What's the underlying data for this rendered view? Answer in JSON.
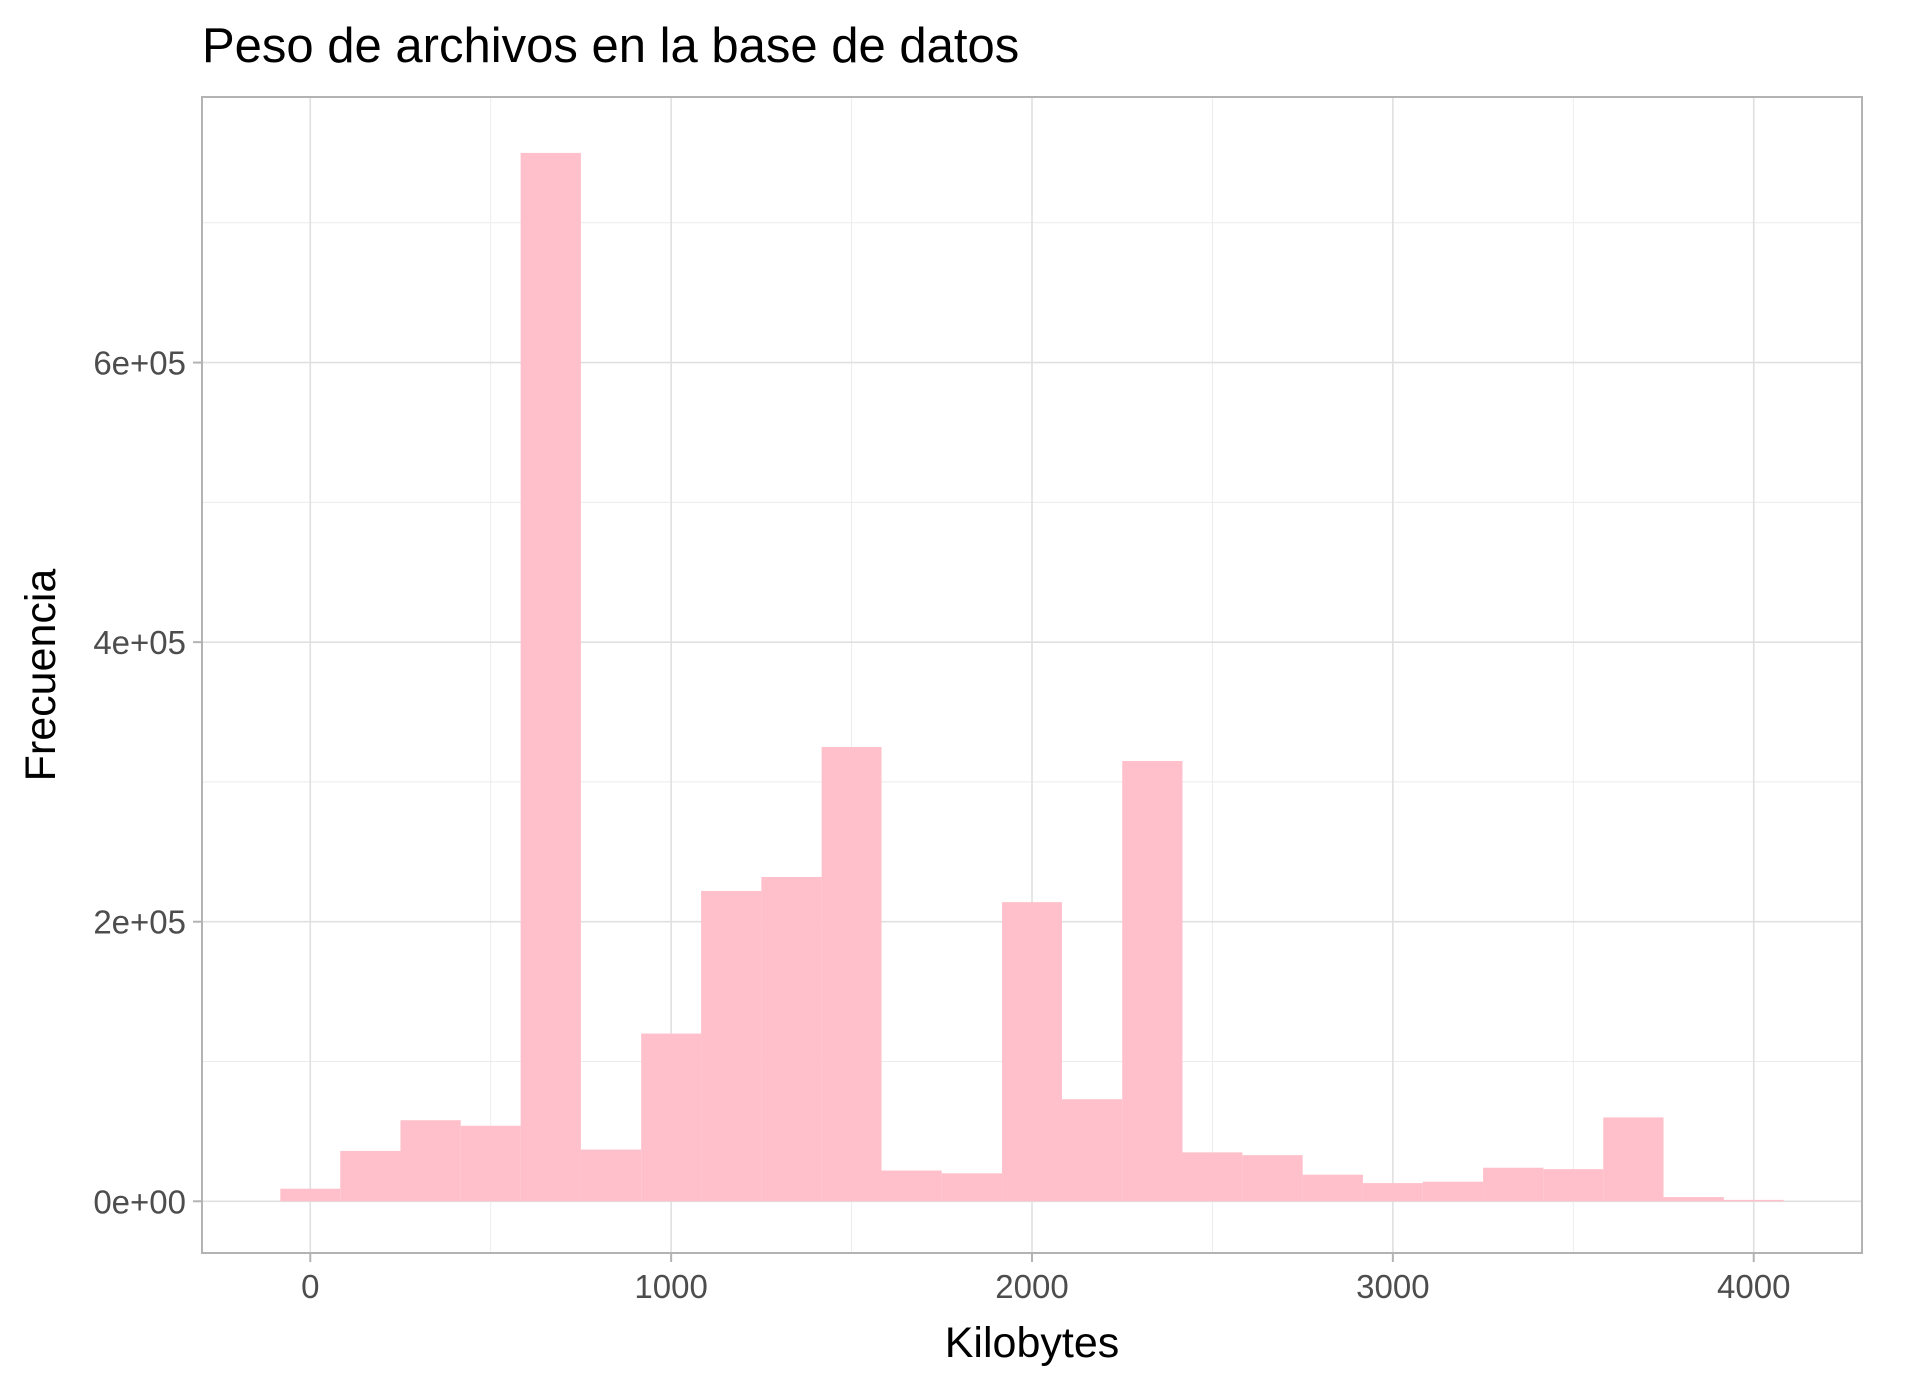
{
  "chart_data": {
    "type": "bar",
    "title": "Peso de archivos en la base de datos",
    "xlabel": "Kilobytes",
    "ylabel": "Frecuencia",
    "xlim": [
      -300,
      4300
    ],
    "ylim": [
      -37000,
      790000
    ],
    "x_ticks": [
      0,
      1000,
      2000,
      3000,
      4000
    ],
    "x_tick_labels": [
      "0",
      "1000",
      "2000",
      "3000",
      "4000"
    ],
    "y_ticks": [
      0,
      200000,
      400000,
      600000
    ],
    "y_tick_labels": [
      "0e+00",
      "2e+05",
      "4e+05",
      "6e+05"
    ],
    "bar_color": "#ffc0cb",
    "grid": true,
    "bins": [
      {
        "x0": -83,
        "x1": 83,
        "count": 9000
      },
      {
        "x0": 83,
        "x1": 250,
        "count": 36000
      },
      {
        "x0": 250,
        "x1": 417,
        "count": 58000
      },
      {
        "x0": 417,
        "x1": 583,
        "count": 54000
      },
      {
        "x0": 583,
        "x1": 750,
        "count": 750000
      },
      {
        "x0": 750,
        "x1": 917,
        "count": 37000
      },
      {
        "x0": 917,
        "x1": 1083,
        "count": 120000
      },
      {
        "x0": 1083,
        "x1": 1250,
        "count": 222000
      },
      {
        "x0": 1250,
        "x1": 1417,
        "count": 232000
      },
      {
        "x0": 1417,
        "x1": 1583,
        "count": 325000
      },
      {
        "x0": 1583,
        "x1": 1750,
        "count": 22000
      },
      {
        "x0": 1750,
        "x1": 1917,
        "count": 20000
      },
      {
        "x0": 1917,
        "x1": 2083,
        "count": 214000
      },
      {
        "x0": 2083,
        "x1": 2250,
        "count": 73000
      },
      {
        "x0": 2250,
        "x1": 2417,
        "count": 315000
      },
      {
        "x0": 2417,
        "x1": 2583,
        "count": 35000
      },
      {
        "x0": 2583,
        "x1": 2750,
        "count": 33000
      },
      {
        "x0": 2750,
        "x1": 2917,
        "count": 19000
      },
      {
        "x0": 2917,
        "x1": 3083,
        "count": 13000
      },
      {
        "x0": 3083,
        "x1": 3250,
        "count": 14000
      },
      {
        "x0": 3250,
        "x1": 3417,
        "count": 24000
      },
      {
        "x0": 3417,
        "x1": 3583,
        "count": 23000
      },
      {
        "x0": 3583,
        "x1": 3750,
        "count": 60000
      },
      {
        "x0": 3750,
        "x1": 3917,
        "count": 3000
      },
      {
        "x0": 3917,
        "x1": 4083,
        "count": 1000
      }
    ]
  }
}
